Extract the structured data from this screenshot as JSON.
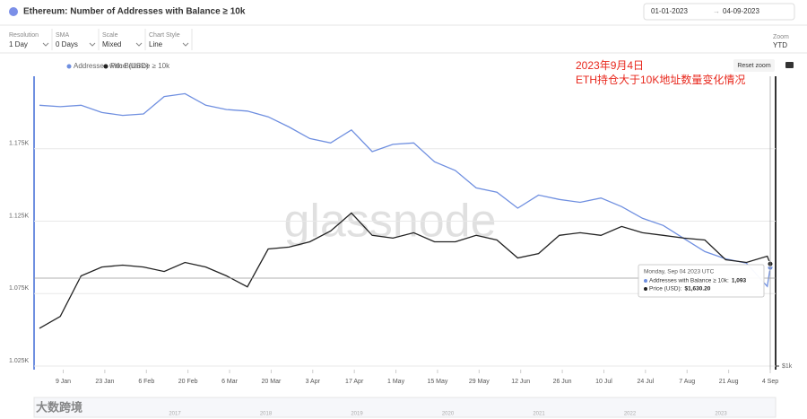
{
  "header": {
    "title": "Ethereum: Number of Addresses with Balance ≥ 10k",
    "date_from": "01-01-2023",
    "date_to": "04-09-2023"
  },
  "controls": [
    {
      "label": "Resolution",
      "value": "1 Day"
    },
    {
      "label": "SMA",
      "value": "0 Days"
    },
    {
      "label": "Scale",
      "value": "Mixed"
    },
    {
      "label": "Chart Style",
      "value": "Line"
    }
  ],
  "zoom": {
    "label": "Zoom",
    "value": "YTD"
  },
  "reset_zoom": "Reset zoom",
  "watermark": "glassnode",
  "navigator_years": [
    "2017",
    "2018",
    "2019",
    "2020",
    "2021",
    "2022",
    "2023"
  ],
  "logo": "大数跨境",
  "tooltip": {
    "date": "Monday, Sep 04 2023 UTC",
    "rows": [
      {
        "label": "Addresses with Balance ≥ 10k:",
        "value": "1,093"
      },
      {
        "label": "Price (USD):",
        "value": "$1,630.20"
      }
    ]
  },
  "chart_data": {
    "type": "line",
    "annotations": [
      "2023年9月4日",
      "ETH持仓大于10K地址数量变化情况"
    ],
    "x": [
      "2023-01-01",
      "2023-01-08",
      "2023-01-15",
      "2023-01-22",
      "2023-01-29",
      "2023-02-05",
      "2023-02-12",
      "2023-02-19",
      "2023-02-26",
      "2023-03-05",
      "2023-03-12",
      "2023-03-19",
      "2023-03-26",
      "2023-04-02",
      "2023-04-09",
      "2023-04-16",
      "2023-04-23",
      "2023-04-30",
      "2023-05-07",
      "2023-05-14",
      "2023-05-21",
      "2023-05-28",
      "2023-06-04",
      "2023-06-11",
      "2023-06-18",
      "2023-06-25",
      "2023-07-02",
      "2023-07-09",
      "2023-07-16",
      "2023-07-23",
      "2023-07-30",
      "2023-08-06",
      "2023-08-13",
      "2023-08-20",
      "2023-08-27",
      "2023-09-03",
      "2023-09-04"
    ],
    "series": [
      {
        "name": "Addresses with Balance ≥ 10k",
        "color": "#6f8fe0",
        "values": [
          1205,
          1204,
          1205,
          1200,
          1198,
          1199,
          1211,
          1213,
          1205,
          1202,
          1201,
          1197,
          1190,
          1182,
          1179,
          1188,
          1173,
          1178,
          1179,
          1166,
          1160,
          1148,
          1145,
          1134,
          1143,
          1140,
          1138,
          1141,
          1135,
          1127,
          1122,
          1113,
          1104,
          1099,
          1096,
          1080,
          1093
        ]
      },
      {
        "name": "Price (USD)",
        "color": "#222222",
        "axis": "y2",
        "values": [
          1198,
          1268,
          1539,
          1606,
          1621,
          1606,
          1572,
          1642,
          1606,
          1539,
          1461,
          1751,
          1767,
          1812,
          1908,
          2080,
          1869,
          1844,
          1892,
          1812,
          1812,
          1869,
          1828,
          1677,
          1713,
          1869,
          1892,
          1869,
          1950,
          1892,
          1869,
          1844,
          1828,
          1663,
          1642,
          1692,
          1630.2
        ]
      }
    ],
    "xlim": [
      "2023-01-01",
      "2023-09-04"
    ],
    "xticks": [
      {
        "value": "2023-01-09",
        "label": "9 Jan"
      },
      {
        "value": "2023-01-23",
        "label": "23 Jan"
      },
      {
        "value": "2023-02-06",
        "label": "6 Feb"
      },
      {
        "value": "2023-02-20",
        "label": "20 Feb"
      },
      {
        "value": "2023-03-06",
        "label": "6 Mar"
      },
      {
        "value": "2023-03-20",
        "label": "20 Mar"
      },
      {
        "value": "2023-04-03",
        "label": "3 Apr"
      },
      {
        "value": "2023-04-17",
        "label": "17 Apr"
      },
      {
        "value": "2023-05-01",
        "label": "1 May"
      },
      {
        "value": "2023-05-15",
        "label": "15 May"
      },
      {
        "value": "2023-05-29",
        "label": "29 May"
      },
      {
        "value": "2023-06-12",
        "label": "12 Jun"
      },
      {
        "value": "2023-06-26",
        "label": "26 Jun"
      },
      {
        "value": "2023-07-10",
        "label": "10 Jul"
      },
      {
        "value": "2023-07-24",
        "label": "24 Jul"
      },
      {
        "value": "2023-08-07",
        "label": "7 Aug"
      },
      {
        "value": "2023-08-21",
        "label": "21 Aug"
      },
      {
        "value": "2023-09-04",
        "label": "4 Sep"
      }
    ],
    "ylim": [
      1025,
      1225
    ],
    "yticks": [
      {
        "value": 1025,
        "label": "1.025K"
      },
      {
        "value": 1075,
        "label": "1.075K"
      },
      {
        "value": 1125,
        "label": "1.125K"
      },
      {
        "value": 1175,
        "label": "1.175K"
      }
    ],
    "y2lim": [
      1000,
      4000
    ],
    "y2ticks": [
      {
        "value": 1000,
        "label": "$1k"
      }
    ],
    "y2log": true,
    "grid": true
  }
}
